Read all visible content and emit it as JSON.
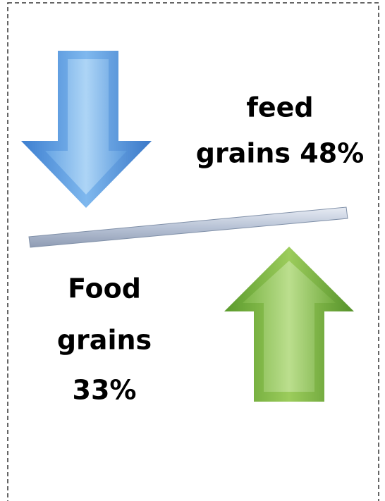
{
  "labels": [
    {
      "lines": [
        "feed",
        "grains 48%"
      ]
    },
    {
      "lines": [
        "Food",
        "grains",
        "33%"
      ]
    }
  ]
}
